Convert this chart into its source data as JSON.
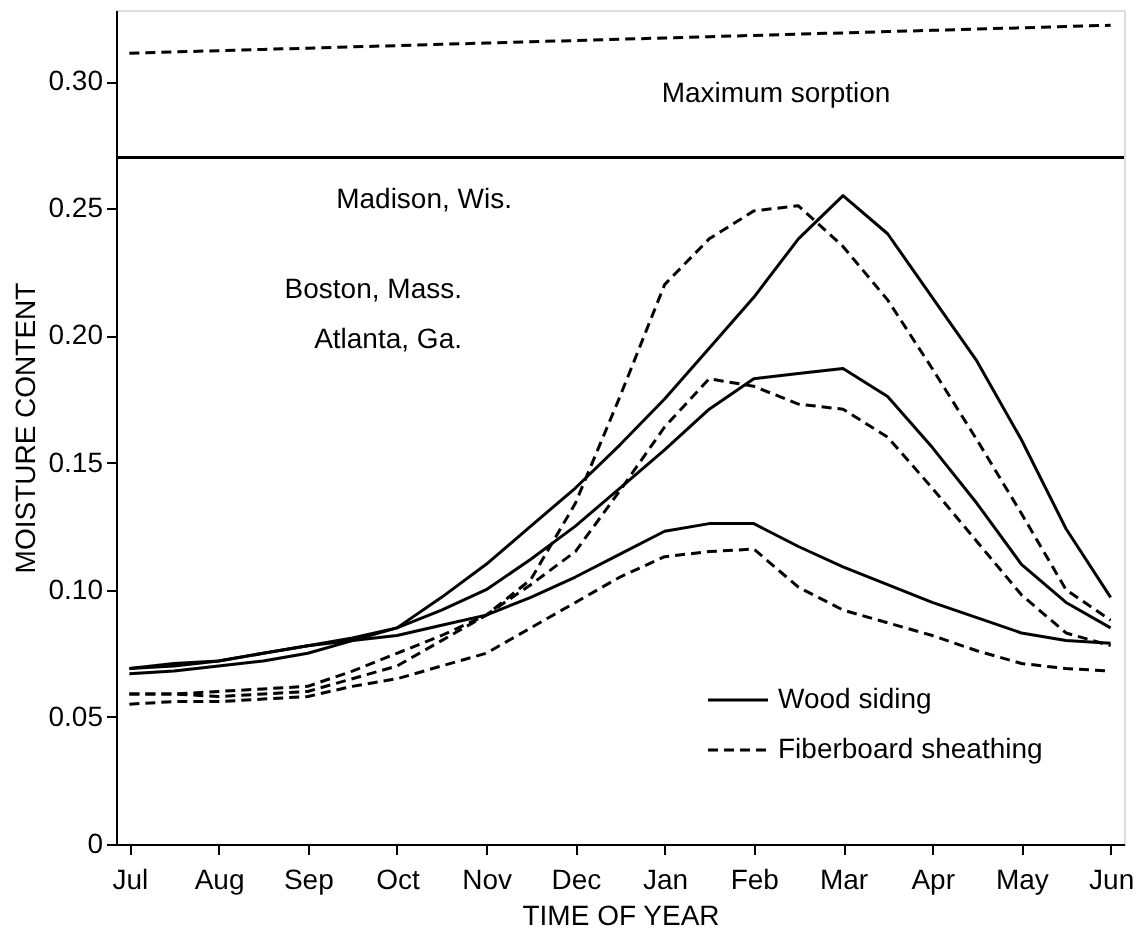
{
  "chart_data": {
    "type": "line",
    "xlabel": "TIME OF YEAR",
    "ylabel": "MOISTURE CONTENT",
    "categories": [
      "Jul",
      null,
      "Aug",
      null,
      "Sep",
      null,
      "Oct",
      null,
      "Nov",
      null,
      "Dec",
      null,
      "Jan",
      null,
      "Feb",
      null,
      "Mar",
      null,
      "Apr",
      null,
      "May",
      null,
      "Jun"
    ],
    "ylim": [
      0,
      0.328
    ],
    "yticks": [
      0,
      0.05,
      {
        "value": 0.1,
        "label": "0.10"
      },
      0.15,
      {
        "value": 0.2,
        "label": "0.20"
      },
      0.25,
      {
        "value": 0.3,
        "label": "0.30"
      }
    ],
    "grid": false,
    "legend": "bottom right",
    "marker": "none",
    "series": [
      {
        "name": "Wood siding",
        "color": "#000000",
        "line_style": "solid",
        "values": [
          0.069,
          0.07,
          0.072,
          0.075,
          0.078,
          0.081,
          0.085,
          0.097,
          0.11,
          0.125,
          0.14,
          0.157,
          0.175,
          0.195,
          0.215,
          0.238,
          0.255,
          0.24,
          0.215,
          0.19,
          0.159,
          0.124,
          0.097
        ]
      },
      {
        "name": "Fiberboard sheathing",
        "color": "#000000",
        "line_style": "dashed",
        "values": [
          0.059,
          0.059,
          0.058,
          0.059,
          0.06,
          0.065,
          0.07,
          0.08,
          0.09,
          0.104,
          0.134,
          0.176,
          0.22,
          0.238,
          0.249,
          0.251,
          0.235,
          0.214,
          0.187,
          0.159,
          0.13,
          0.1,
          0.088
        ]
      },
      {
        "color": "#000000",
        "line_style": "solid",
        "values": [
          0.067,
          0.068,
          0.07,
          0.072,
          0.075,
          0.08,
          0.085,
          0.092,
          0.1,
          0.112,
          0.125,
          0.14,
          0.155,
          0.171,
          0.183,
          0.185,
          0.187,
          0.176,
          0.156,
          0.134,
          0.11,
          0.095,
          0.085
        ]
      },
      {
        "color": "#000000",
        "line_style": "dashed",
        "values": [
          0.059,
          0.059,
          0.06,
          0.061,
          0.062,
          0.068,
          0.075,
          0.082,
          0.09,
          0.102,
          0.115,
          0.139,
          0.164,
          0.183,
          0.18,
          0.173,
          0.171,
          0.16,
          0.14,
          0.119,
          0.098,
          0.083,
          0.078
        ]
      },
      {
        "color": "#000000",
        "line_style": "solid",
        "values": [
          0.069,
          0.071,
          0.072,
          0.075,
          0.078,
          0.08,
          0.082,
          0.086,
          0.09,
          0.097,
          0.105,
          0.114,
          0.123,
          0.126,
          0.126,
          0.117,
          0.109,
          0.102,
          0.095,
          0.089,
          0.083,
          0.08,
          0.079
        ]
      },
      {
        "color": "#000000",
        "line_style": "dashed",
        "values": [
          0.055,
          0.056,
          0.056,
          0.057,
          0.058,
          0.062,
          0.065,
          0.07,
          0.075,
          0.085,
          0.095,
          0.105,
          0.113,
          0.115,
          0.116,
          0.101,
          0.092,
          0.087,
          0.082,
          0.076,
          0.071,
          0.069,
          0.068
        ]
      },
      {
        "color": "#000000",
        "line_style": "dashed",
        "values": [
          0.311,
          0.3115,
          0.312,
          0.3125,
          0.313,
          0.3135,
          0.314,
          0.3145,
          0.315,
          0.3155,
          0.316,
          0.3165,
          0.317,
          0.3175,
          0.318,
          0.3185,
          0.319,
          0.3195,
          0.32,
          0.3205,
          0.321,
          0.3215,
          0.322
        ]
      }
    ],
    "ref_lines": [
      {
        "axis": "y",
        "value": 0.27,
        "color": "#000000",
        "line_style": "solid"
      }
    ],
    "annotations": [
      "Madison, Wis.",
      "Boston, Mass.",
      "Atlanta, Ga.",
      "Maximum sorption"
    ]
  }
}
